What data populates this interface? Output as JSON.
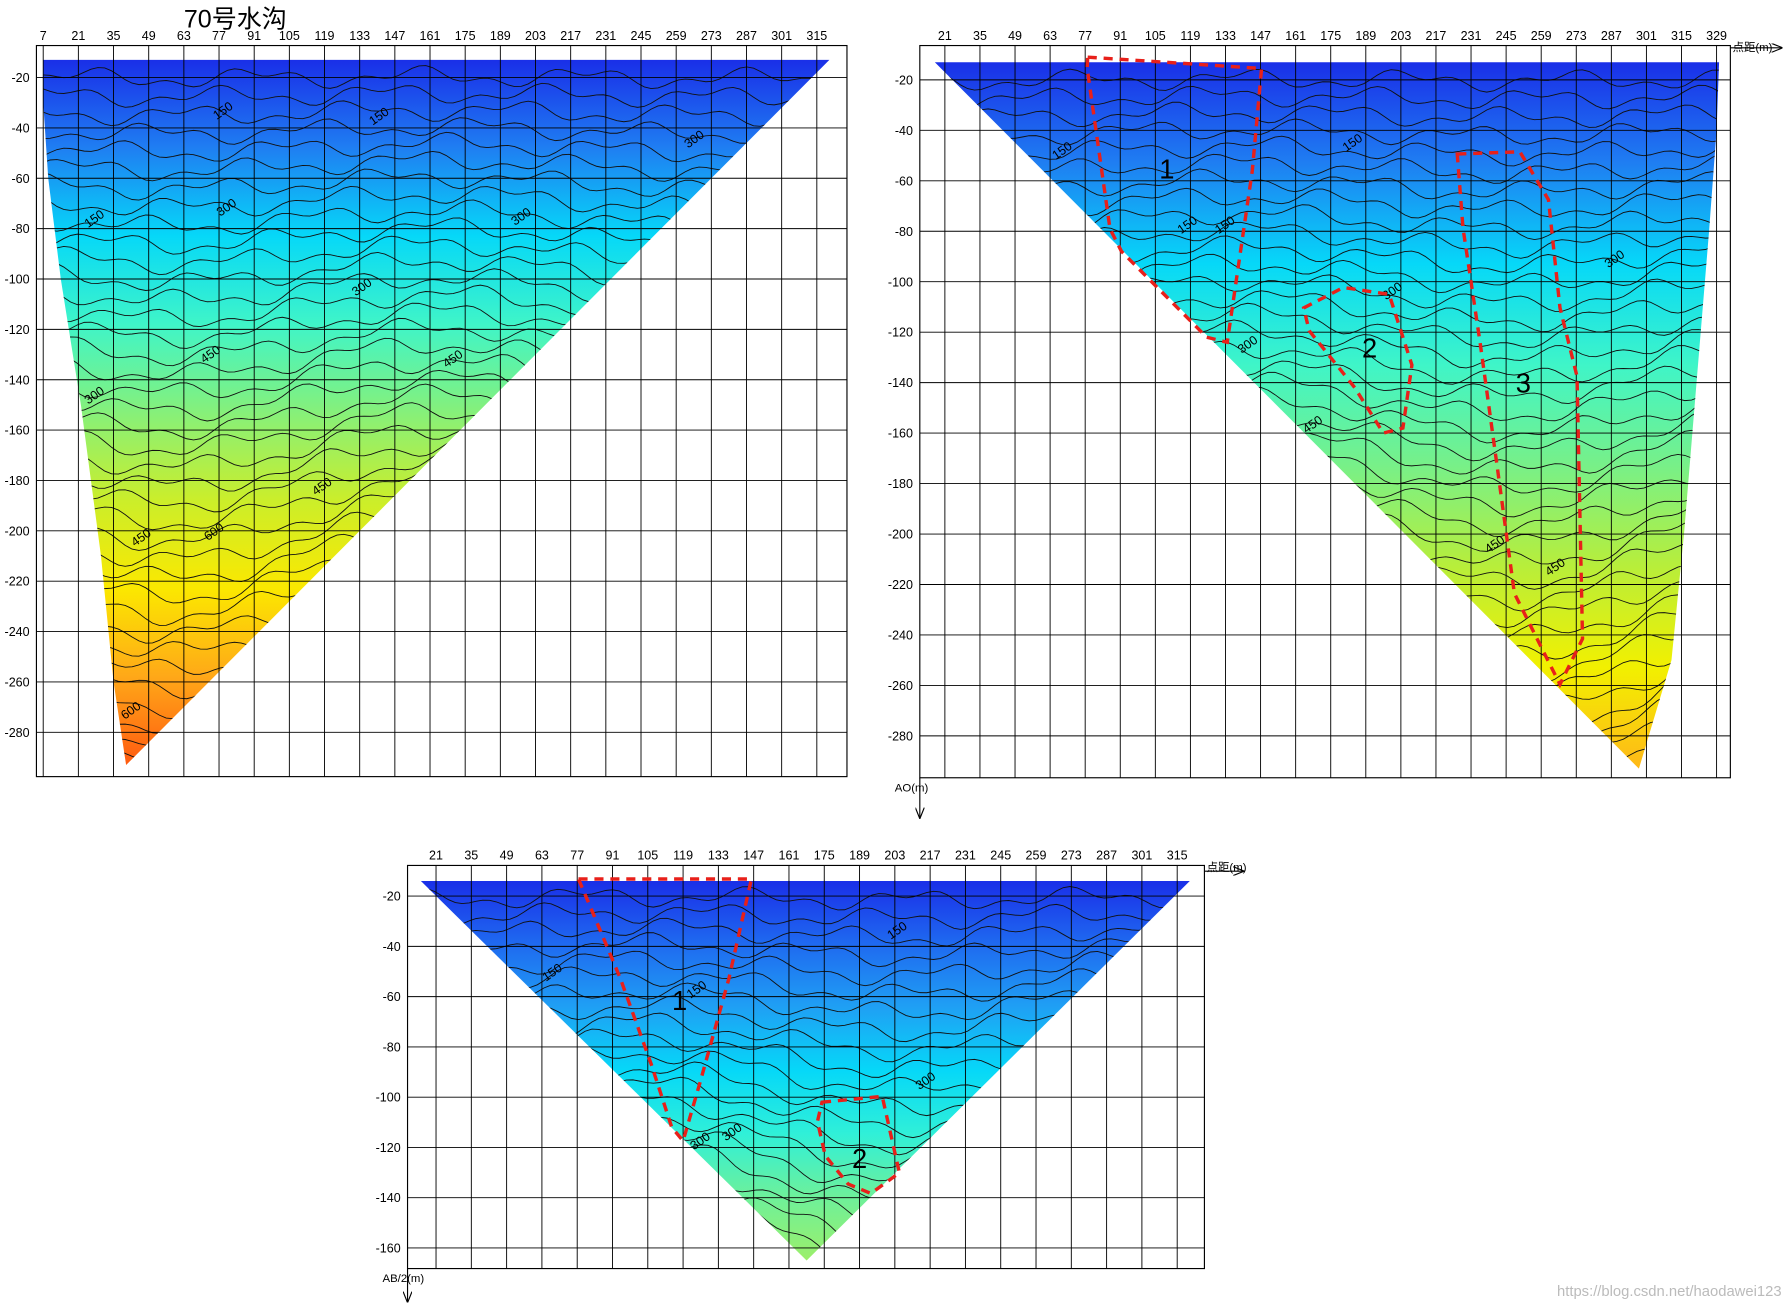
{
  "chart_data": [
    {
      "type": "contour",
      "title": "70号水沟",
      "xticks": [
        7,
        21,
        35,
        49,
        63,
        77,
        91,
        105,
        119,
        133,
        147,
        161,
        175,
        189,
        203,
        217,
        231,
        245,
        259,
        273,
        287,
        301,
        315
      ],
      "yticks": [
        -20,
        -40,
        -60,
        -80,
        -100,
        -120,
        -140,
        -160,
        -180,
        -200,
        -220,
        -240,
        -260,
        -280
      ],
      "xlim": [
        4.3,
        327
      ],
      "ylim": [
        -297.6,
        -7.3
      ],
      "grid": true,
      "color_stops": [
        "#1a2fe8",
        "#1f7ef2",
        "#06d8f8",
        "#3ff5c8",
        "#86f07a",
        "#cbee2a",
        "#fbe800",
        "#ffa818",
        "#ff5a10"
      ],
      "section_x": [
        7,
        320,
        40,
        35,
        30,
        22,
        14,
        9,
        7
      ],
      "section_y": [
        -13,
        -13,
        -293,
        -260,
        -210,
        -150,
        -100,
        -60,
        -30
      ],
      "contour_labels": {
        "values": [
          150,
          150,
          150,
          300,
          300,
          300,
          300,
          300,
          450,
          450,
          450,
          450,
          600,
          600
        ],
        "x": [
          79.5,
          141.6,
          28.3,
          80.9,
          198.2,
          134.8,
          267.1,
          28.3,
          74.5,
          171,
          46.9,
          118.9,
          75.9,
          42.8
        ],
        "y": [
          -34.5,
          -36.7,
          -77.4,
          -72.9,
          -76.5,
          -104.5,
          -45.8,
          -147.5,
          -131.2,
          -133,
          -204,
          -183.7,
          -201.7,
          -272.7
        ]
      }
    },
    {
      "type": "contour",
      "x_label": "点距(m)",
      "y_label": "AO(m)",
      "xticks": [
        21,
        35,
        49,
        63,
        77,
        91,
        105,
        119,
        133,
        147,
        161,
        175,
        189,
        203,
        217,
        231,
        245,
        259,
        273,
        287,
        301,
        315,
        329
      ],
      "yticks": [
        -20,
        -40,
        -60,
        -80,
        -100,
        -120,
        -140,
        -160,
        -180,
        -200,
        -220,
        -240,
        -260,
        -280
      ],
      "xlim": [
        11,
        334.5
      ],
      "ylim": [
        -296.6,
        -6.4
      ],
      "grid": true,
      "color_stops": [
        "#1a2fe8",
        "#1f7ef2",
        "#06d8f8",
        "#3ff5c8",
        "#78f088",
        "#b8ee3a",
        "#f2f000",
        "#ffb818"
      ],
      "section_x": [
        17,
        330,
        329,
        326,
        321,
        316,
        311,
        298
      ],
      "section_y": [
        -13,
        -13,
        -40,
        -80,
        -140,
        -200,
        -250,
        -293
      ],
      "contour_labels": {
        "values": [
          150,
          150,
          150,
          150,
          300,
          300,
          300,
          450,
          450,
          450
        ],
        "x": [
          68.7,
          118.7,
          133.7,
          184.6,
          200.5,
          142.8,
          289.2,
          168.7,
          241.4,
          265.5
        ],
        "y": [
          -49.4,
          -78.8,
          -78.8,
          -46.2,
          -105,
          -126.2,
          -92.3,
          -157.9,
          -205.4,
          -214.4
        ]
      },
      "zones": [
        {
          "label": "1",
          "label_x": 109.6,
          "label_y": -55,
          "outline_x": [
            78,
            147.4,
            143.7,
            133.7,
            125.5,
            91.5,
            86.9,
            77.8
          ],
          "outline_y": [
            -11,
            -15.5,
            -56,
            -124,
            -122,
            -88,
            -79,
            -15.5
          ]
        },
        {
          "label": "2",
          "label_x": 190.5,
          "label_y": -126,
          "outline_x": [
            164.2,
            180,
            198.3,
            207.4,
            203.8,
            196,
            184.6,
            166.4
          ],
          "outline_y": [
            -110.4,
            -102.3,
            -105,
            -133,
            -158,
            -160,
            -142,
            -119.4
          ]
        },
        {
          "label": "3",
          "label_x": 251.9,
          "label_y": -139.8,
          "outline_x": [
            225.5,
            250.5,
            261.9,
            266.5,
            273.3,
            275.5,
            266.5,
            259.6,
            248.3,
            241.5,
            234.6,
            227.8
          ],
          "outline_y": [
            -49.4,
            -48.5,
            -67.5,
            -110.4,
            -137.5,
            -241.5,
            -259.6,
            -246,
            -223.5,
            -173.7,
            -124,
            -78.8
          ]
        }
      ]
    },
    {
      "type": "contour",
      "x_label": "点距(m)",
      "y_label": "AB/2(m)",
      "xticks": [
        21,
        35,
        49,
        63,
        77,
        91,
        105,
        119,
        133,
        147,
        161,
        175,
        189,
        203,
        217,
        231,
        245,
        259,
        273,
        287,
        301,
        315
      ],
      "yticks": [
        -20,
        -40,
        -60,
        -80,
        -100,
        -120,
        -140,
        -160
      ],
      "xlim": [
        9.7,
        325.8
      ],
      "ylim": [
        -168.2,
        -7.8
      ],
      "grid": true,
      "color_stops": [
        "#1a2fe8",
        "#1f6af0",
        "#1fa0f4",
        "#06d8f8",
        "#30f0d8",
        "#6ef09a",
        "#9cef6a"
      ],
      "section_x": [
        15,
        320,
        168
      ],
      "section_y": [
        -14,
        -14,
        -165
      ],
      "contour_labels": {
        "values": [
          150,
          150,
          150,
          300,
          300,
          300
        ],
        "x": [
          68,
          125.3,
          204.8,
          216.1,
          126.7,
          139.3
        ],
        "y": [
          -51.7,
          -58.5,
          -35,
          -94.8,
          -118.8,
          -115.2
        ]
      },
      "zones": [
        {
          "label": "1",
          "label_x": 117.6,
          "label_y": -61.2,
          "outline_x": [
            77.5,
            146.1,
            137.1,
            125.8,
            119,
            114.5,
            106.4,
            94.2,
            82.9
          ],
          "outline_y": [
            -13.2,
            -13.2,
            -53.1,
            -93.9,
            -117.4,
            -112,
            -87,
            -53,
            -25.9
          ]
        },
        {
          "label": "2",
          "label_x": 189,
          "label_y": -124.2,
          "outline_x": [
            174.1,
            198,
            204.8,
            193.5,
            184.5,
            175.4,
            172.3
          ],
          "outline_y": [
            -102,
            -99.7,
            -130.1,
            -138.3,
            -134.6,
            -123.3,
            -109.7
          ]
        }
      ]
    }
  ],
  "watermark": "https://blog.csdn.net/haodawei123"
}
